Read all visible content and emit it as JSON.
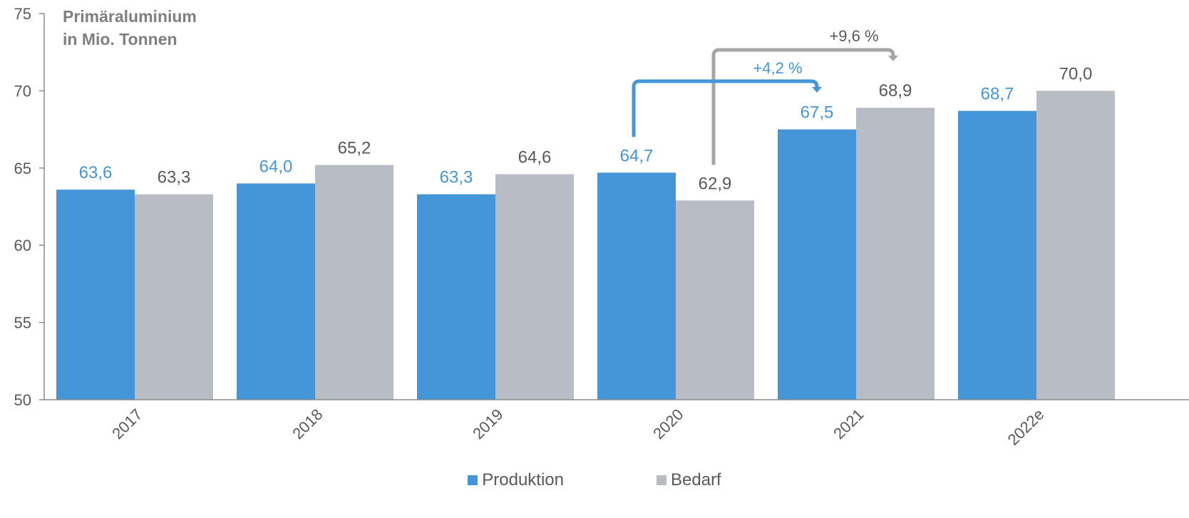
{
  "chart_data": {
    "type": "bar",
    "title": "Primäraluminium",
    "subtitle": "in Mio. Tonnen",
    "categories": [
      "2017",
      "2018",
      "2019",
      "2020",
      "2021",
      "2022e"
    ],
    "series": [
      {
        "name": "Produktion",
        "color": "#4596d8",
        "label_color": "#4596d8",
        "values": [
          63.6,
          64.0,
          63.3,
          64.7,
          67.5,
          68.7
        ],
        "labels": [
          "63,6",
          "64,0",
          "63,3",
          "64,7",
          "67,5",
          "68,7"
        ]
      },
      {
        "name": "Bedarf",
        "color": "#b8bcc4",
        "label_color": "#595959",
        "values": [
          63.3,
          65.2,
          64.6,
          62.9,
          68.9,
          70.0
        ],
        "labels": [
          "63,3",
          "65,2",
          "64,6",
          "62,9",
          "68,9",
          "70,0"
        ]
      }
    ],
    "ylim": [
      50,
      75
    ],
    "yticks": [
      "50",
      "55",
      "60",
      "65",
      "70",
      "75"
    ],
    "grid": false,
    "legend_position": "bottom",
    "annotations": [
      {
        "text": "+4,2 %",
        "from_category": "2020",
        "to_category": "2021",
        "series": "Produktion",
        "color": "#4596d8"
      },
      {
        "text": "+9,6 %",
        "from_category": "2020",
        "to_category": "2021",
        "series": "Bedarf",
        "color": "#a6a6a6"
      }
    ]
  }
}
